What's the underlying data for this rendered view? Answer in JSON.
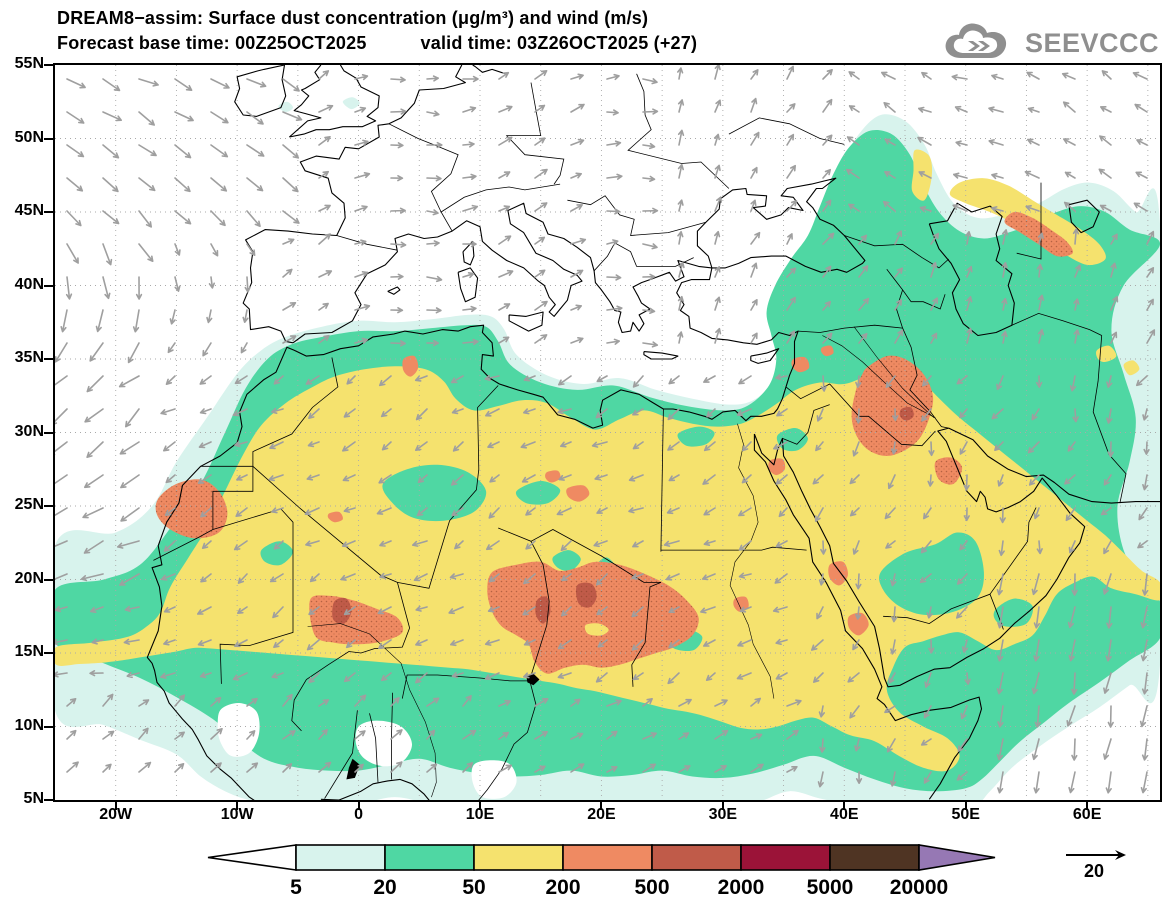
{
  "header": {
    "line1": "DREAM8−assim: Surface dust concentration (μg/m³) and wind (m/s)",
    "line2_left": "Forecast base time: 00Z25OCT2025",
    "line2_right": "valid time: 03Z26OCT2025 (+27)"
  },
  "logo": {
    "name": "SEEVCCC"
  },
  "axes": {
    "lat_labels": [
      "55N",
      "50N",
      "45N",
      "40N",
      "35N",
      "30N",
      "25N",
      "20N",
      "15N",
      "10N",
      "5N"
    ],
    "lon_labels": [
      "20W",
      "10W",
      "0",
      "10E",
      "20E",
      "30E",
      "40E",
      "50E",
      "60E"
    ]
  },
  "legend": {
    "values": [
      "5",
      "20",
      "50",
      "200",
      "500",
      "2000",
      "5000",
      "20000"
    ],
    "cell_colors": [
      "#d8f3ed",
      "#4fd7a3",
      "#f5e26e",
      "#ef8a62",
      "#c05b49",
      "#9b1338",
      "#4f3423"
    ],
    "low_arrow_color": "#ffffff",
    "high_arrow_color": "#9678b4"
  },
  "wind_ref": {
    "label": "20"
  },
  "chart_data": {
    "type": "heatmap",
    "title": "DREAM8−assim: Surface dust concentration (μg/m³) and wind (m/s)",
    "model": "DREAM8−assim",
    "variable": "Surface dust concentration",
    "units": "μg/m³",
    "wind_units": "m/s",
    "forecast_base_time": "00Z25OCT2025",
    "valid_time": "03Z26OCT2025",
    "forecast_hour": "+27",
    "lat_range": [
      "5N",
      "55N"
    ],
    "lon_range": [
      "20W",
      "60E"
    ],
    "contour_levels": [
      5,
      20,
      50,
      200,
      500,
      2000,
      5000,
      20000
    ],
    "level_colors": [
      "#ffffff",
      "#d8f3ed",
      "#4fd7a3",
      "#f5e26e",
      "#ef8a62",
      "#c05b49",
      "#9b1338",
      "#4f3423",
      "#9678b4"
    ],
    "wind_reference_ms": 20,
    "grid": "dotted 5-degree graticule",
    "legend_position": "bottom",
    "high_dust_regions": [
      "Sahara–Sahel belt 50–200 μg/m³ (17W–35E, 12N–32N)",
      "Mali core ~1W,17N: 500–2000 μg/m³",
      "Niger/Chad cores ~15–19E,17–20N: 500–2000 μg/m³",
      "Western Sahara / Mauritania ~12W,24N: 200–500 μg/m³",
      "Iraq / Mesopotamia ~44E,31N: 500–2000 μg/m³",
      "North of Caucasus band ~53–59E,42–45N: 200–500 μg/m³",
      "Arabian Peninsula mostly 50–200 μg/m³ with 20–50 pockets"
    ]
  }
}
